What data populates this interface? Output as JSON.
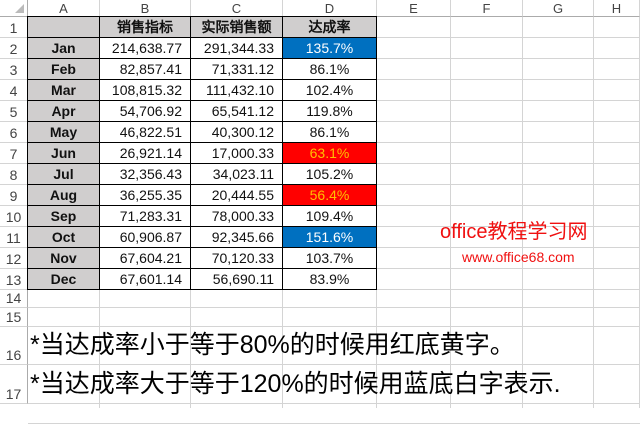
{
  "columns": [
    "A",
    "B",
    "C",
    "D",
    "E",
    "F",
    "G",
    "H"
  ],
  "rows": [
    "1",
    "2",
    "3",
    "4",
    "5",
    "6",
    "7",
    "8",
    "9",
    "10",
    "11",
    "12",
    "13",
    "14",
    "15",
    "16",
    "17"
  ],
  "headers": [
    "",
    "销售指标",
    "实际销售额",
    "达成率"
  ],
  "data": [
    [
      "Jan",
      "214,638.77",
      "291,344.33",
      "135.7%",
      "blue"
    ],
    [
      "Feb",
      "82,857.41",
      "71,331.12",
      "86.1%",
      ""
    ],
    [
      "Mar",
      "108,815.32",
      "111,432.10",
      "102.4%",
      ""
    ],
    [
      "Apr",
      "54,706.92",
      "65,541.12",
      "119.8%",
      ""
    ],
    [
      "May",
      "46,822.51",
      "40,300.12",
      "86.1%",
      ""
    ],
    [
      "Jun",
      "26,921.14",
      "17,000.33",
      "63.1%",
      "red"
    ],
    [
      "Jul",
      "32,356.43",
      "34,023.11",
      "105.2%",
      ""
    ],
    [
      "Aug",
      "36,255.35",
      "20,444.55",
      "56.4%",
      "red"
    ],
    [
      "Sep",
      "71,283.31",
      "78,000.33",
      "109.4%",
      ""
    ],
    [
      "Oct",
      "60,906.87",
      "92,345.66",
      "151.6%",
      "blue"
    ],
    [
      "Nov",
      "67,604.21",
      "70,120.33",
      "103.7%",
      ""
    ],
    [
      "Dec",
      "67,601.14",
      "56,690.11",
      "83.9%",
      ""
    ]
  ],
  "notes": [
    "*当达成率小于等于80%的时候用红底黄字。",
    "*当达成率大于等于120%的时候用蓝底白字表示."
  ],
  "watermark": {
    "line1": "office教程学习网",
    "line2": "www.office68.com"
  },
  "colors": {
    "blue_fill": "#0070c0",
    "blue_text": "#ffffff",
    "red_fill": "#ff0000",
    "red_text": "#ffc000",
    "header_fill": "#d0cece"
  }
}
